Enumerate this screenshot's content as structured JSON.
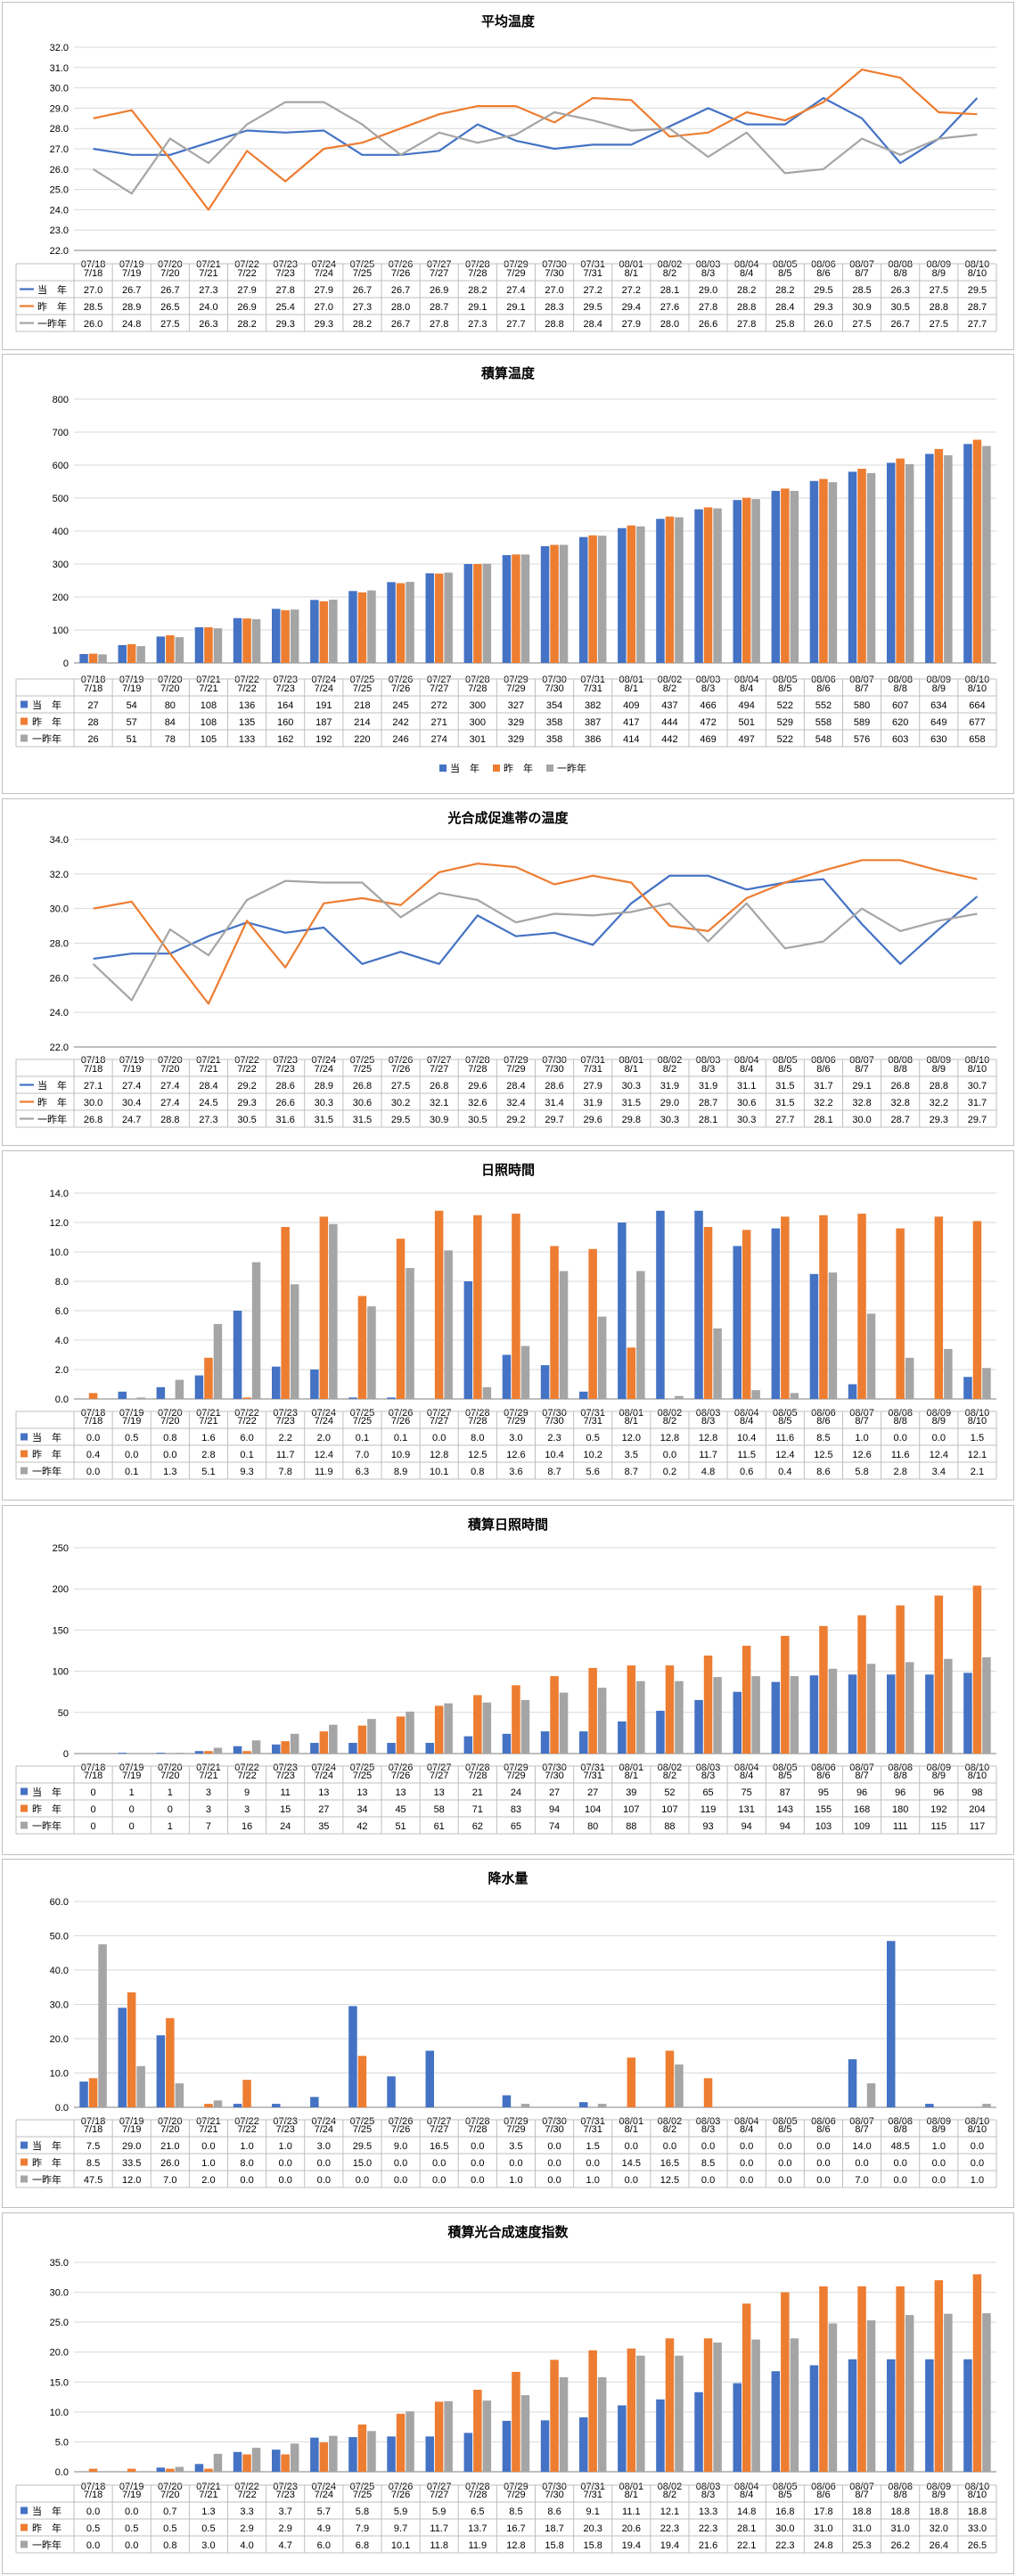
{
  "colors": {
    "current": "#4472c4",
    "prev": "#ed7d31",
    "prev2": "#a5a5a5",
    "grid": "#d9d9d9",
    "axis": "#7f7f7f"
  },
  "series_names": [
    "当　年",
    "昨　年",
    "一昨年"
  ],
  "chart_data": [
    {
      "type": "line",
      "title": "平均温度",
      "x": [
        "07/18",
        "07/19",
        "07/20",
        "07/21",
        "07/22",
        "07/23",
        "07/24",
        "07/25",
        "07/26",
        "07/27",
        "07/28",
        "07/29",
        "07/30",
        "07/31",
        "08/01",
        "08/02",
        "08/03",
        "08/04",
        "08/05",
        "08/06",
        "08/07",
        "08/08",
        "08/09",
        "08/10"
      ],
      "table_dates": [
        "7/18",
        "7/19",
        "7/20",
        "7/21",
        "7/22",
        "7/23",
        "7/24",
        "7/25",
        "7/26",
        "7/27",
        "7/28",
        "7/29",
        "7/30",
        "7/31",
        "8/1",
        "8/2",
        "8/3",
        "8/4",
        "8/5",
        "8/6",
        "8/7",
        "8/8",
        "8/9",
        "8/10"
      ],
      "ylim": [
        22.0,
        32.0
      ],
      "yticks": [
        "22.0",
        "23.0",
        "24.0",
        "25.0",
        "26.0",
        "27.0",
        "28.0",
        "29.0",
        "30.0",
        "31.0",
        "32.0"
      ],
      "series": [
        {
          "name": "当　年",
          "values": [
            "27.0",
            "26.7",
            "26.7",
            "27.3",
            "27.9",
            "27.8",
            "27.9",
            "26.7",
            "26.7",
            "26.9",
            "28.2",
            "27.4",
            "27.0",
            "27.2",
            "27.2",
            "28.1",
            "29.0",
            "28.2",
            "28.2",
            "29.5",
            "28.5",
            "26.3",
            "27.5",
            "29.5"
          ]
        },
        {
          "name": "昨　年",
          "values": [
            "28.5",
            "28.9",
            "26.5",
            "24.0",
            "26.9",
            "25.4",
            "27.0",
            "27.3",
            "28.0",
            "28.7",
            "29.1",
            "29.1",
            "28.3",
            "29.5",
            "29.4",
            "27.6",
            "27.8",
            "28.8",
            "28.4",
            "29.3",
            "30.9",
            "30.5",
            "28.8",
            "28.7"
          ]
        },
        {
          "name": "一昨年",
          "values": [
            "26.0",
            "24.8",
            "27.5",
            "26.3",
            "28.2",
            "29.3",
            "29.3",
            "28.2",
            "26.7",
            "27.8",
            "27.3",
            "27.7",
            "28.8",
            "28.4",
            "27.9",
            "28.0",
            "26.6",
            "27.8",
            "25.8",
            "26.0",
            "27.5",
            "26.7",
            "27.5",
            "27.7"
          ]
        }
      ]
    },
    {
      "type": "bar",
      "title": "積算温度",
      "x": [
        "07/18",
        "07/19",
        "07/20",
        "07/21",
        "07/22",
        "07/23",
        "07/24",
        "07/25",
        "07/26",
        "07/27",
        "07/28",
        "07/29",
        "07/30",
        "07/31",
        "08/01",
        "08/02",
        "08/03",
        "08/04",
        "08/05",
        "08/06",
        "08/07",
        "08/08",
        "08/09",
        "08/10"
      ],
      "table_dates": [
        "7/18",
        "7/19",
        "7/20",
        "7/21",
        "7/22",
        "7/23",
        "7/24",
        "7/25",
        "7/26",
        "7/27",
        "7/28",
        "7/29",
        "7/30",
        "7/31",
        "8/1",
        "8/2",
        "8/3",
        "8/4",
        "8/5",
        "8/6",
        "8/7",
        "8/8",
        "8/9",
        "8/10"
      ],
      "ylim": [
        0,
        800
      ],
      "yticks": [
        "0",
        "100",
        "200",
        "300",
        "400",
        "500",
        "600",
        "700",
        "800"
      ],
      "legend": "bottom",
      "series": [
        {
          "name": "当　年",
          "values": [
            "27",
            "54",
            "80",
            "108",
            "136",
            "164",
            "191",
            "218",
            "245",
            "272",
            "300",
            "327",
            "354",
            "382",
            "409",
            "437",
            "466",
            "494",
            "522",
            "552",
            "580",
            "607",
            "634",
            "664"
          ]
        },
        {
          "name": "昨　年",
          "values": [
            "28",
            "57",
            "84",
            "108",
            "135",
            "160",
            "187",
            "214",
            "242",
            "271",
            "300",
            "329",
            "358",
            "387",
            "417",
            "444",
            "472",
            "501",
            "529",
            "558",
            "589",
            "620",
            "649",
            "677"
          ]
        },
        {
          "name": "一昨年",
          "values": [
            "26",
            "51",
            "78",
            "105",
            "133",
            "162",
            "192",
            "220",
            "246",
            "274",
            "301",
            "329",
            "358",
            "386",
            "414",
            "442",
            "469",
            "497",
            "522",
            "548",
            "576",
            "603",
            "630",
            "658"
          ]
        }
      ]
    },
    {
      "type": "line",
      "title": "光合成促進帯の温度",
      "x": [
        "07/18",
        "07/19",
        "07/20",
        "07/21",
        "07/22",
        "07/23",
        "07/24",
        "07/25",
        "07/26",
        "07/27",
        "07/28",
        "07/29",
        "07/30",
        "07/31",
        "08/01",
        "08/02",
        "08/03",
        "08/04",
        "08/05",
        "08/06",
        "08/07",
        "08/08",
        "08/09",
        "08/10"
      ],
      "table_dates": [
        "7/18",
        "7/19",
        "7/20",
        "7/21",
        "7/22",
        "7/23",
        "7/24",
        "7/25",
        "7/26",
        "7/27",
        "7/28",
        "7/29",
        "7/30",
        "7/31",
        "8/1",
        "8/2",
        "8/3",
        "8/4",
        "8/5",
        "8/6",
        "8/7",
        "8/8",
        "8/9",
        "8/10"
      ],
      "ylim": [
        22.0,
        34.0
      ],
      "yticks": [
        "22.0",
        "24.0",
        "26.0",
        "28.0",
        "30.0",
        "32.0",
        "34.0"
      ],
      "series": [
        {
          "name": "当　年",
          "values": [
            "27.1",
            "27.4",
            "27.4",
            "28.4",
            "29.2",
            "28.6",
            "28.9",
            "26.8",
            "27.5",
            "26.8",
            "29.6",
            "28.4",
            "28.6",
            "27.9",
            "30.3",
            "31.9",
            "31.9",
            "31.1",
            "31.5",
            "31.7",
            "29.1",
            "26.8",
            "28.8",
            "30.7"
          ]
        },
        {
          "name": "昨　年",
          "values": [
            "30.0",
            "30.4",
            "27.4",
            "24.5",
            "29.3",
            "26.6",
            "30.3",
            "30.6",
            "30.2",
            "32.1",
            "32.6",
            "32.4",
            "31.4",
            "31.9",
            "31.5",
            "29.0",
            "28.7",
            "30.6",
            "31.5",
            "32.2",
            "32.8",
            "32.8",
            "32.2",
            "31.7"
          ]
        },
        {
          "name": "一昨年",
          "values": [
            "26.8",
            "24.7",
            "28.8",
            "27.3",
            "30.5",
            "31.6",
            "31.5",
            "31.5",
            "29.5",
            "30.9",
            "30.5",
            "29.2",
            "29.7",
            "29.6",
            "29.8",
            "30.3",
            "28.1",
            "30.3",
            "27.7",
            "28.1",
            "30.0",
            "28.7",
            "29.3",
            "29.7"
          ]
        }
      ]
    },
    {
      "type": "bar",
      "title": "日照時間",
      "x": [
        "07/18",
        "07/19",
        "07/20",
        "07/21",
        "07/22",
        "07/23",
        "07/24",
        "07/25",
        "07/26",
        "07/27",
        "07/28",
        "07/29",
        "07/30",
        "07/31",
        "08/01",
        "08/02",
        "08/03",
        "08/04",
        "08/05",
        "08/06",
        "08/07",
        "08/08",
        "08/09",
        "08/10"
      ],
      "table_dates": [
        "7/18",
        "7/19",
        "7/20",
        "7/21",
        "7/22",
        "7/23",
        "7/24",
        "7/25",
        "7/26",
        "7/27",
        "7/28",
        "7/29",
        "7/30",
        "7/31",
        "8/1",
        "8/2",
        "8/3",
        "8/4",
        "8/5",
        "8/6",
        "8/7",
        "8/8",
        "8/9",
        "8/10"
      ],
      "ylim": [
        0.0,
        14.0
      ],
      "yticks": [
        "0.0",
        "2.0",
        "4.0",
        "6.0",
        "8.0",
        "10.0",
        "12.0",
        "14.0"
      ],
      "series": [
        {
          "name": "当　年",
          "values": [
            "0.0",
            "0.5",
            "0.8",
            "1.6",
            "6.0",
            "2.2",
            "2.0",
            "0.1",
            "0.1",
            "0.0",
            "8.0",
            "3.0",
            "2.3",
            "0.5",
            "12.0",
            "12.8",
            "12.8",
            "10.4",
            "11.6",
            "8.5",
            "1.0",
            "0.0",
            "0.0",
            "1.5"
          ]
        },
        {
          "name": "昨　年",
          "values": [
            "0.4",
            "0.0",
            "0.0",
            "2.8",
            "0.1",
            "11.7",
            "12.4",
            "7.0",
            "10.9",
            "12.8",
            "12.5",
            "12.6",
            "10.4",
            "10.2",
            "3.5",
            "0.0",
            "11.7",
            "11.5",
            "12.4",
            "12.5",
            "12.6",
            "11.6",
            "12.4",
            "12.1"
          ]
        },
        {
          "name": "一昨年",
          "values": [
            "0.0",
            "0.1",
            "1.3",
            "5.1",
            "9.3",
            "7.8",
            "11.9",
            "6.3",
            "8.9",
            "10.1",
            "0.8",
            "3.6",
            "8.7",
            "5.6",
            "8.7",
            "0.2",
            "4.8",
            "0.6",
            "0.4",
            "8.6",
            "5.8",
            "2.8",
            "3.4",
            "2.1"
          ]
        }
      ]
    },
    {
      "type": "bar",
      "title": "積算日照時間",
      "x": [
        "07/18",
        "07/19",
        "07/20",
        "07/21",
        "07/22",
        "07/23",
        "07/24",
        "07/25",
        "07/26",
        "07/27",
        "07/28",
        "07/29",
        "07/30",
        "07/31",
        "08/01",
        "08/02",
        "08/03",
        "08/04",
        "08/05",
        "08/06",
        "08/07",
        "08/08",
        "08/09",
        "08/10"
      ],
      "table_dates": [
        "7/18",
        "7/19",
        "7/20",
        "7/21",
        "7/22",
        "7/23",
        "7/24",
        "7/25",
        "7/26",
        "7/27",
        "7/28",
        "7/29",
        "7/30",
        "7/31",
        "8/1",
        "8/2",
        "8/3",
        "8/4",
        "8/5",
        "8/6",
        "8/7",
        "8/8",
        "8/9",
        "8/10"
      ],
      "ylim": [
        0,
        250
      ],
      "yticks": [
        "0",
        "50",
        "100",
        "150",
        "200",
        "250"
      ],
      "series": [
        {
          "name": "当　年",
          "values": [
            "0",
            "1",
            "1",
            "3",
            "9",
            "11",
            "13",
            "13",
            "13",
            "13",
            "21",
            "24",
            "27",
            "27",
            "39",
            "52",
            "65",
            "75",
            "87",
            "95",
            "96",
            "96",
            "96",
            "98"
          ]
        },
        {
          "name": "昨　年",
          "values": [
            "0",
            "0",
            "0",
            "3",
            "3",
            "15",
            "27",
            "34",
            "45",
            "58",
            "71",
            "83",
            "94",
            "104",
            "107",
            "107",
            "119",
            "131",
            "143",
            "155",
            "168",
            "180",
            "192",
            "204"
          ]
        },
        {
          "name": "一昨年",
          "values": [
            "0",
            "0",
            "1",
            "7",
            "16",
            "24",
            "35",
            "42",
            "51",
            "61",
            "62",
            "65",
            "74",
            "80",
            "88",
            "88",
            "93",
            "94",
            "94",
            "103",
            "109",
            "111",
            "115",
            "117"
          ]
        }
      ]
    },
    {
      "type": "bar",
      "title": "降水量",
      "x": [
        "07/18",
        "07/19",
        "07/20",
        "07/21",
        "07/22",
        "07/23",
        "07/24",
        "07/25",
        "07/26",
        "07/27",
        "07/28",
        "07/29",
        "07/30",
        "07/31",
        "08/01",
        "08/02",
        "08/03",
        "08/04",
        "08/05",
        "08/06",
        "08/07",
        "08/08",
        "08/09",
        "08/10"
      ],
      "table_dates": [
        "7/18",
        "7/19",
        "7/20",
        "7/21",
        "7/22",
        "7/23",
        "7/24",
        "7/25",
        "7/26",
        "7/27",
        "7/28",
        "7/29",
        "7/30",
        "7/31",
        "8/1",
        "8/2",
        "8/3",
        "8/4",
        "8/5",
        "8/6",
        "8/7",
        "8/8",
        "8/9",
        "8/10"
      ],
      "ylim": [
        0.0,
        60.0
      ],
      "yticks": [
        "0.0",
        "10.0",
        "20.0",
        "30.0",
        "40.0",
        "50.0",
        "60.0"
      ],
      "series": [
        {
          "name": "当　年",
          "values": [
            "7.5",
            "29.0",
            "21.0",
            "0.0",
            "1.0",
            "1.0",
            "3.0",
            "29.5",
            "9.0",
            "16.5",
            "0.0",
            "3.5",
            "0.0",
            "1.5",
            "0.0",
            "0.0",
            "0.0",
            "0.0",
            "0.0",
            "0.0",
            "14.0",
            "48.5",
            "1.0",
            "0.0"
          ]
        },
        {
          "name": "昨　年",
          "values": [
            "8.5",
            "33.5",
            "26.0",
            "1.0",
            "8.0",
            "0.0",
            "0.0",
            "15.0",
            "0.0",
            "0.0",
            "0.0",
            "0.0",
            "0.0",
            "0.0",
            "14.5",
            "16.5",
            "8.5",
            "0.0",
            "0.0",
            "0.0",
            "0.0",
            "0.0",
            "0.0",
            "0.0"
          ]
        },
        {
          "name": "一昨年",
          "values": [
            "47.5",
            "12.0",
            "7.0",
            "2.0",
            "0.0",
            "0.0",
            "0.0",
            "0.0",
            "0.0",
            "0.0",
            "0.0",
            "1.0",
            "0.0",
            "1.0",
            "0.0",
            "12.5",
            "0.0",
            "0.0",
            "0.0",
            "0.0",
            "7.0",
            "0.0",
            "0.0",
            "1.0"
          ]
        }
      ]
    },
    {
      "type": "bar",
      "title": "積算光合成速度指数",
      "x": [
        "07/18",
        "07/19",
        "07/20",
        "07/21",
        "07/22",
        "07/23",
        "07/24",
        "07/25",
        "07/26",
        "07/27",
        "07/28",
        "07/29",
        "07/30",
        "07/31",
        "08/01",
        "08/02",
        "08/03",
        "08/04",
        "08/05",
        "08/06",
        "08/07",
        "08/08",
        "08/09",
        "08/10"
      ],
      "table_dates": [
        "7/18",
        "7/19",
        "7/20",
        "7/21",
        "7/22",
        "7/23",
        "7/24",
        "7/25",
        "7/26",
        "7/27",
        "7/28",
        "7/29",
        "7/30",
        "7/31",
        "8/1",
        "8/2",
        "8/3",
        "8/4",
        "8/5",
        "8/6",
        "8/7",
        "8/8",
        "8/9",
        "8/10"
      ],
      "ylim": [
        0.0,
        35.0
      ],
      "yticks": [
        "0.0",
        "5.0",
        "10.0",
        "15.0",
        "20.0",
        "25.0",
        "30.0",
        "35.0"
      ],
      "series": [
        {
          "name": "当　年",
          "values": [
            "0.0",
            "0.0",
            "0.7",
            "1.3",
            "3.3",
            "3.7",
            "5.7",
            "5.8",
            "5.9",
            "5.9",
            "6.5",
            "8.5",
            "8.6",
            "9.1",
            "11.1",
            "12.1",
            "13.3",
            "14.8",
            "16.8",
            "17.8",
            "18.8",
            "18.8",
            "18.8",
            "18.8"
          ]
        },
        {
          "name": "昨　年",
          "values": [
            "0.5",
            "0.5",
            "0.5",
            "0.5",
            "2.9",
            "2.9",
            "4.9",
            "7.9",
            "9.7",
            "11.7",
            "13.7",
            "16.7",
            "18.7",
            "20.3",
            "20.6",
            "22.3",
            "22.3",
            "28.1",
            "30.0",
            "31.0",
            "31.0",
            "31.0",
            "32.0",
            "33.0"
          ]
        },
        {
          "name": "一昨年",
          "values": [
            "0.0",
            "0.0",
            "0.8",
            "3.0",
            "4.0",
            "4.7",
            "6.0",
            "6.8",
            "10.1",
            "11.8",
            "11.9",
            "12.8",
            "15.8",
            "15.8",
            "19.4",
            "19.4",
            "21.6",
            "22.1",
            "22.3",
            "24.8",
            "25.3",
            "26.2",
            "26.4",
            "26.5"
          ]
        }
      ]
    }
  ]
}
